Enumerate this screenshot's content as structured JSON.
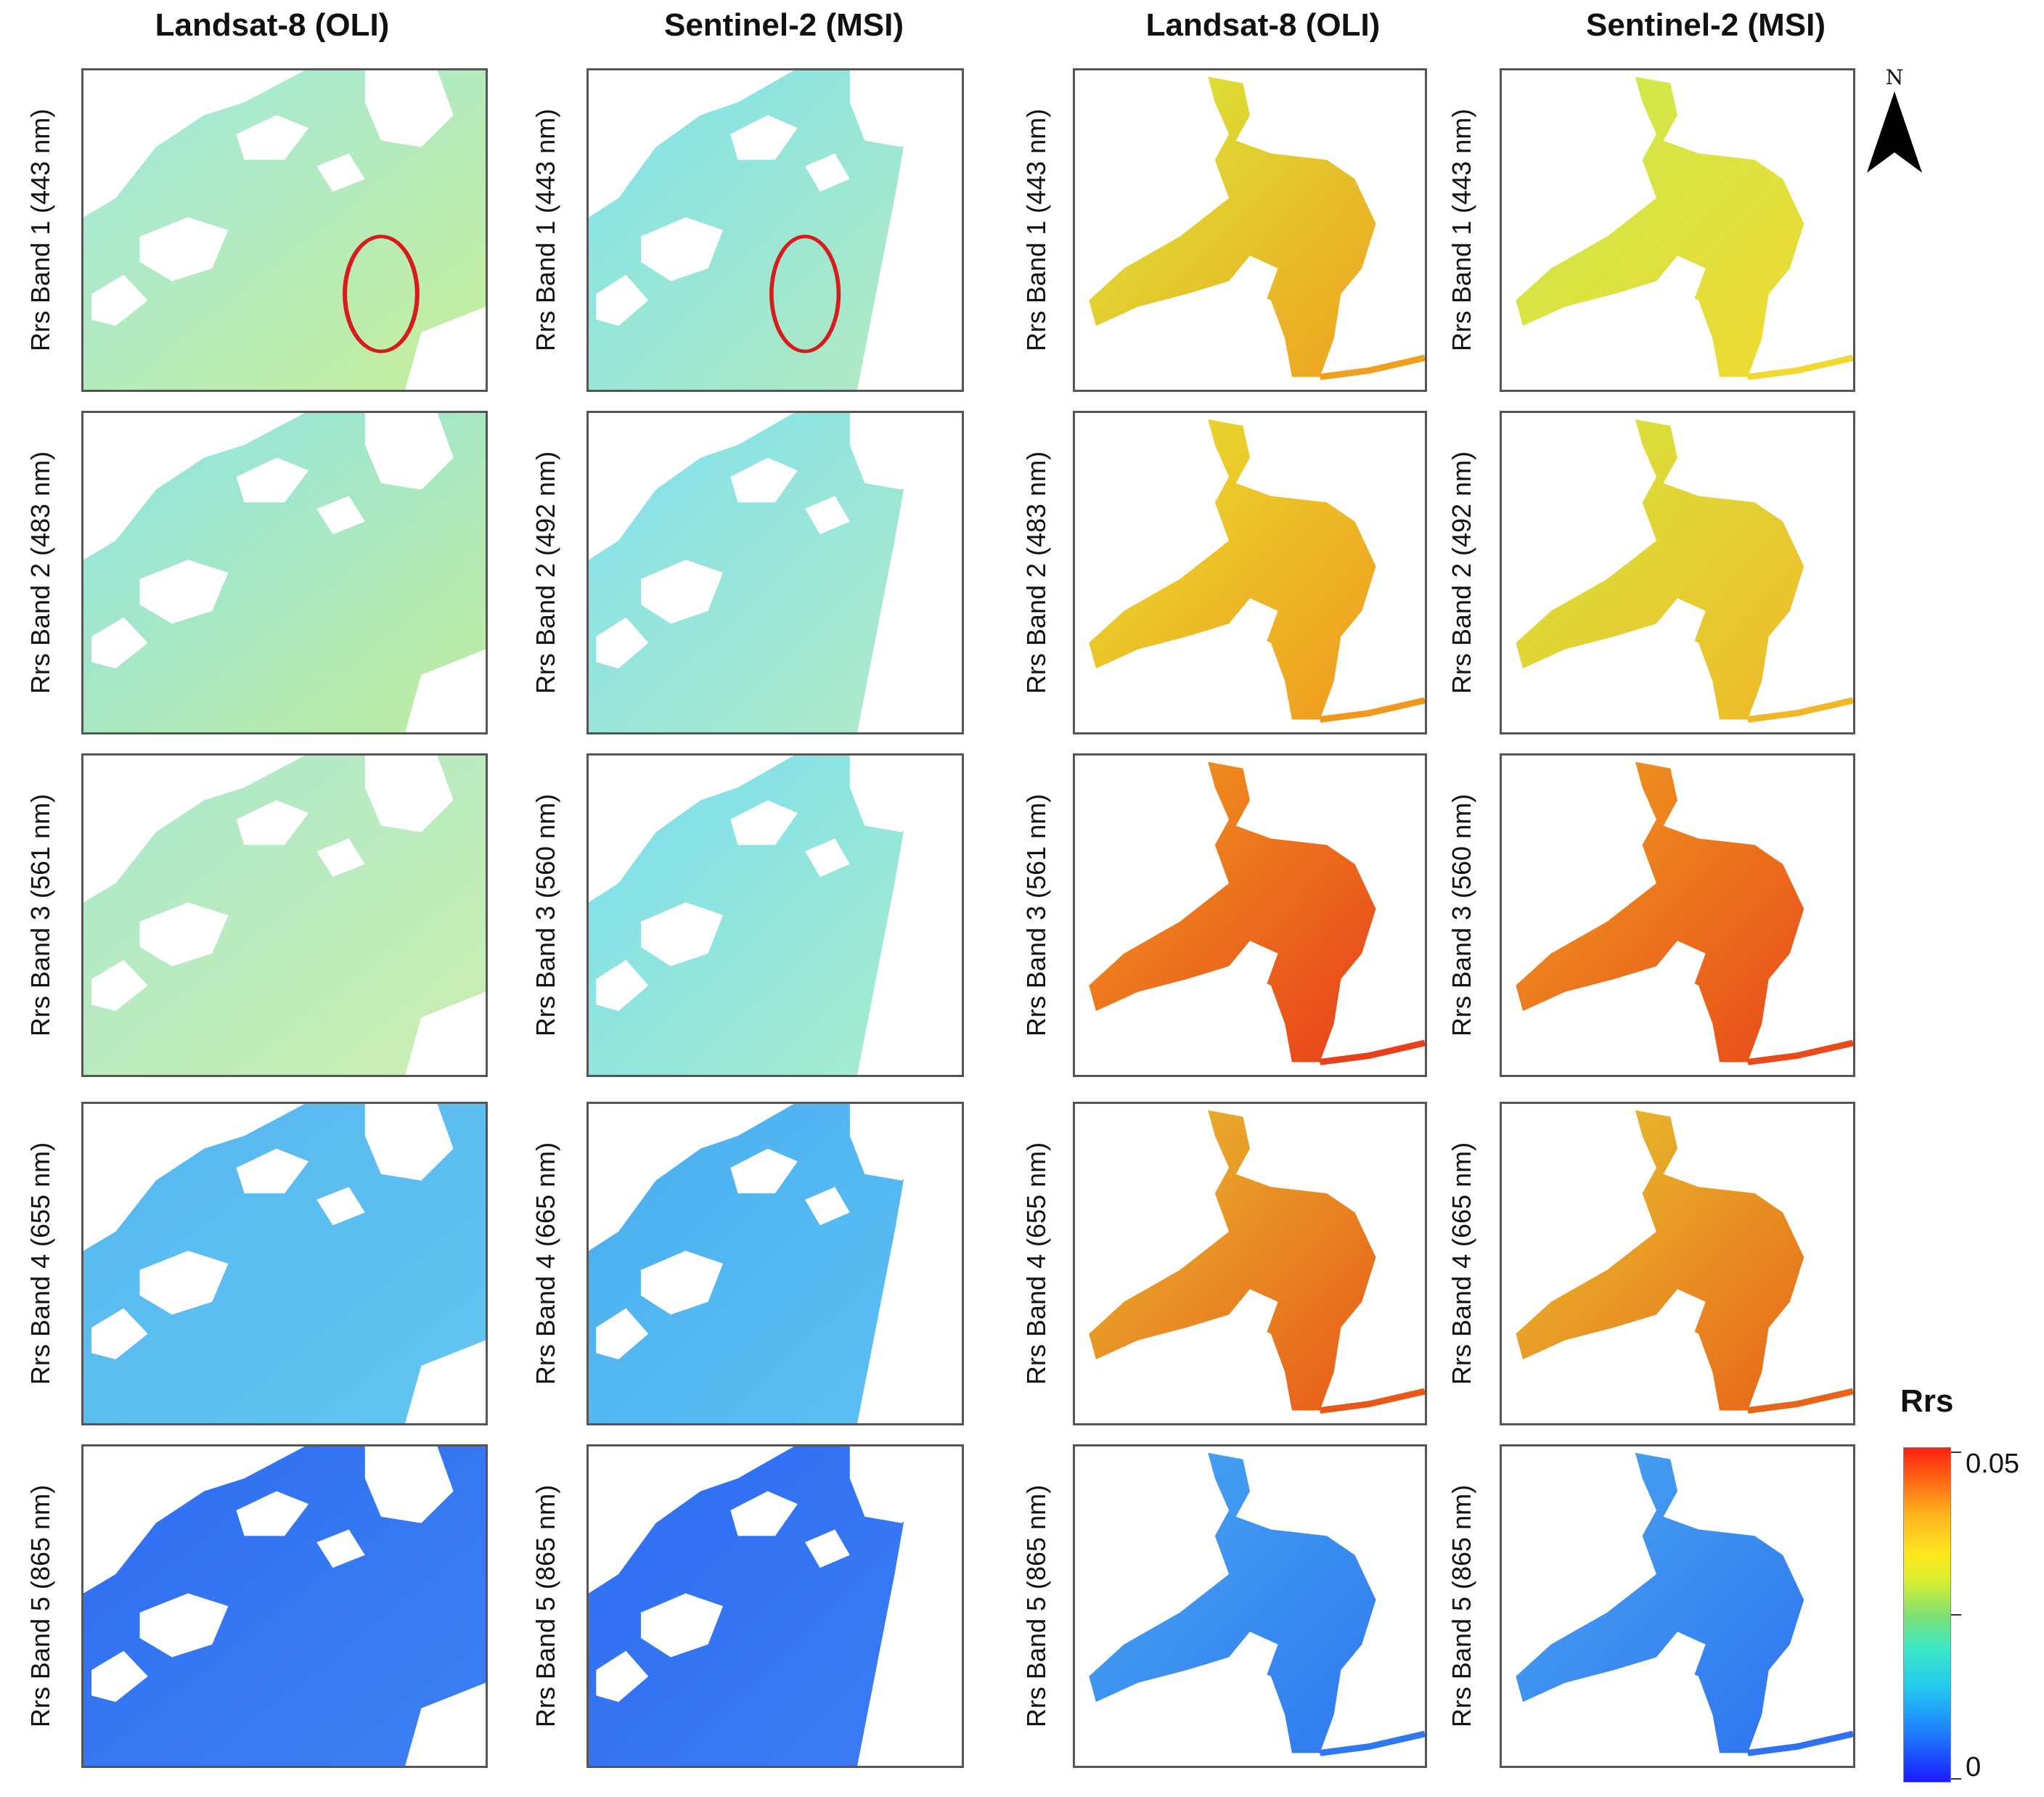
{
  "figure": {
    "column_titles": [
      "Landsat-8 (OLI)",
      "Sentinel-2 (MSI)",
      "Landsat-8 (OLI)",
      "Sentinel-2 (MSI)"
    ],
    "row_labels": [
      [
        "Rrs Band 1 (443 nm)",
        "Rrs Band 1 (443 nm)",
        "Rrs Band 1 (443 nm)",
        "Rrs Band 1 (443 nm)"
      ],
      [
        "Rrs Band 2 (483 nm)",
        "Rrs Band 2 (492 nm)",
        "Rrs Band 2 (483 nm)",
        "Rrs Band 2 (492 nm)"
      ],
      [
        "Rrs Band 3 (561 nm)",
        "Rrs Band 3 (560 nm)",
        "Rrs Band 3 (561 nm)",
        "Rrs Band 3 (560 nm)"
      ],
      [
        "Rrs Band 4 (655 nm)",
        "Rrs Band 4 (665 nm)",
        "Rrs Band 4 (655 nm)",
        "Rrs Band 4 (665 nm)"
      ],
      [
        "Rrs Band 5 (865 nm)",
        "Rrs Band 5 (865 nm)",
        "Rrs Band 5 (865 nm)",
        "Rrs Band 5 (865 nm)"
      ]
    ],
    "north_label": "N",
    "colorbar": {
      "title": "Rrs",
      "max_label": "0.05",
      "min_label": "0",
      "ramp": [
        "#1b1bff",
        "#1e7bff",
        "#22c8f0",
        "#3ce8c8",
        "#7fe070",
        "#d8ee30",
        "#ffe81e",
        "#ffb41e",
        "#ff6a14",
        "#ff2010"
      ]
    },
    "panel_colors": [
      [
        [
          "#9fe8e0",
          "#c8ee9a"
        ],
        [
          "#7ee2ec",
          "#b4eac0"
        ],
        [
          "#d8ee3a",
          "#f0a020"
        ],
        [
          "#c8ec50",
          "#f0d830"
        ]
      ],
      [
        [
          "#8fe4e6",
          "#c2ec9e"
        ],
        [
          "#80e0ee",
          "#b0eac6"
        ],
        [
          "#e8e430",
          "#f0981e"
        ],
        [
          "#d4ea40",
          "#f0b828"
        ]
      ],
      [
        [
          "#a8e8cc",
          "#cdeeb0"
        ],
        [
          "#7adeee",
          "#a8eccc"
        ],
        [
          "#f0a020",
          "#e8401a"
        ],
        [
          "#f0a020",
          "#e84a1a"
        ]
      ],
      [
        [
          "#56b6f0",
          "#62c6f0"
        ],
        [
          "#4aaef0",
          "#5cc0f2"
        ],
        [
          "#e8c030",
          "#e85818"
        ],
        [
          "#e8c830",
          "#e86418"
        ]
      ],
      [
        [
          "#2f6ef2",
          "#3c80f2"
        ],
        [
          "#2f6ef2",
          "#3a7cf4"
        ],
        [
          "#4aa8f0",
          "#2e78f0"
        ],
        [
          "#4aa8f0",
          "#2e72f0"
        ]
      ]
    ]
  }
}
